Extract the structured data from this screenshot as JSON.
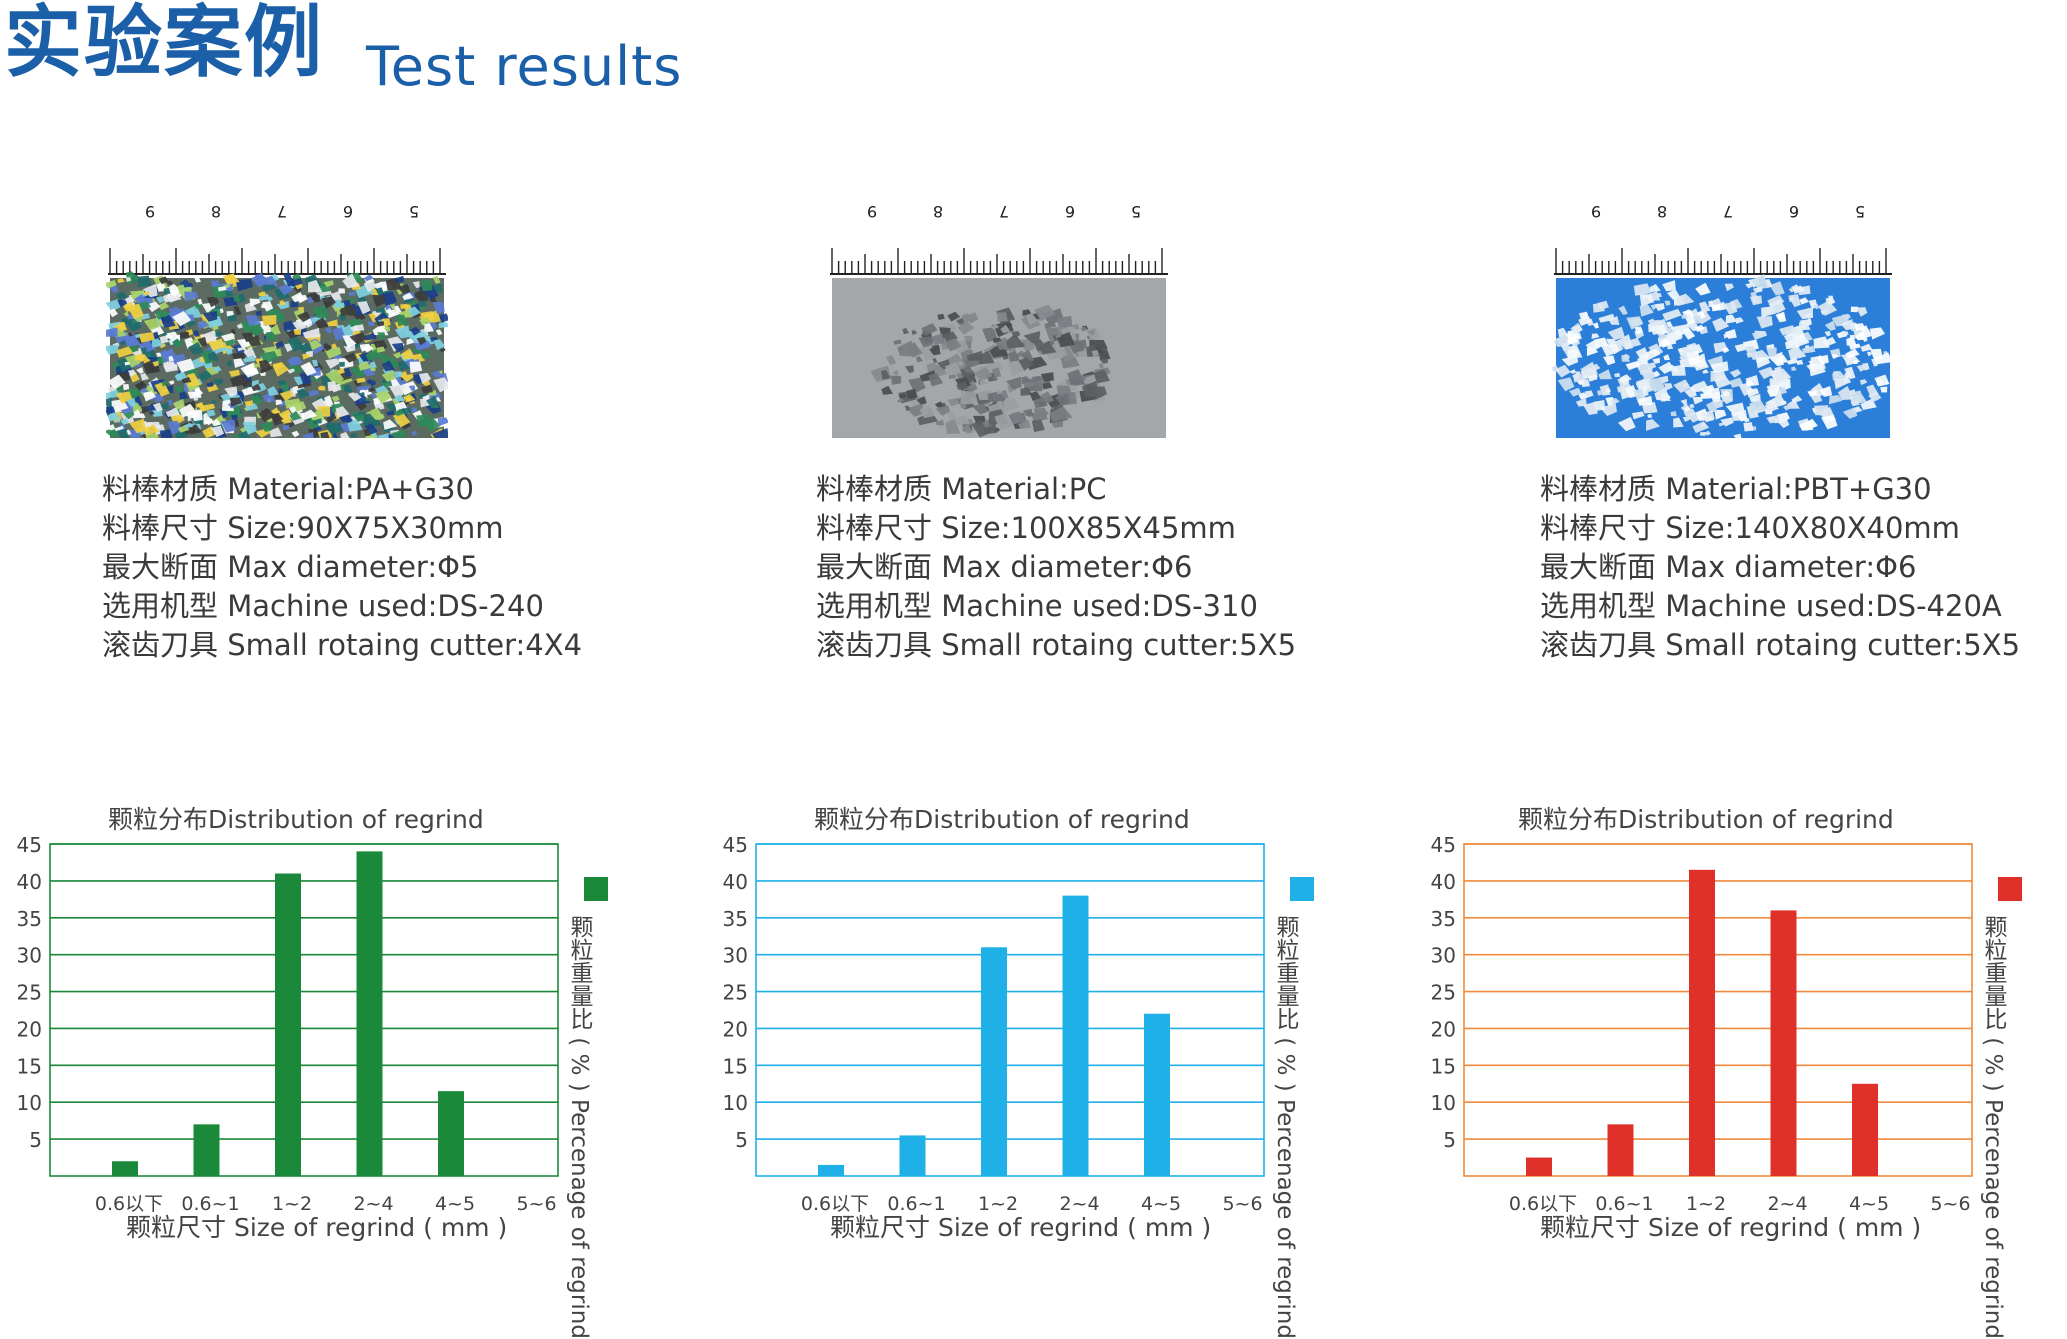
{
  "header": {
    "title_cn": "实验案例",
    "title_en": "Test results"
  },
  "ruler_labels": [
    "9",
    "8",
    "7",
    "6",
    "5"
  ],
  "panels": [
    {
      "id": "pa",
      "photo_icon": "regrind-photo-multicolor",
      "info": [
        "料棒材质 Material:PA+G30",
        "料棒尺寸 Size:90X75X30mm",
        "最大断面 Max diameter:Φ5",
        "选用机型 Machine used:DS-240",
        "滚齿刀具 Small rotaing cutter:4X4"
      ]
    },
    {
      "id": "pc",
      "photo_icon": "regrind-photo-gray",
      "info": [
        "料棒材质 Material:PC",
        "料棒尺寸 Size:100X85X45mm",
        "最大断面 Max diameter:Φ6",
        "选用机型 Machine used:DS-310",
        "滚齿刀具 Small rotaing cutter:5X5"
      ]
    },
    {
      "id": "pbt",
      "photo_icon": "regrind-photo-white",
      "info": [
        "料棒材质 Material:PBT+G30",
        "料棒尺寸 Size:140X80X40mm",
        "最大断面 Max diameter:Φ6",
        "选用机型 Machine used:DS-420A",
        "滚齿刀具 Small rotaing cutter:5X5"
      ]
    }
  ],
  "chart_data": [
    {
      "type": "bar",
      "title": "颗粒分布Distribution of regrind",
      "xlabel": "颗粒尺寸 Size of regrind ( mm )",
      "ylabel": "颗粒重量比 ( % ) Percenage of regrind",
      "categories": [
        "0.6以下",
        "0.6~1",
        "1~2",
        "2~4",
        "4~5",
        "5~6"
      ],
      "values": [
        2,
        7,
        41,
        44,
        11.5,
        0
      ],
      "ylim": [
        0,
        45
      ],
      "yticks": [
        5,
        10,
        15,
        20,
        25,
        30,
        35,
        40,
        45
      ],
      "color": "#1a8a3a",
      "grid": true,
      "legend": "right"
    },
    {
      "type": "bar",
      "title": "颗粒分布Distribution of regrind",
      "xlabel": "颗粒尺寸 Size of regrind ( mm )",
      "ylabel": "颗粒重量比 ( % ) Percenage of regrind",
      "categories": [
        "0.6以下",
        "0.6~1",
        "1~2",
        "2~4",
        "4~5",
        "5~6"
      ],
      "values": [
        1.5,
        5.5,
        31,
        38,
        22,
        0
      ],
      "ylim": [
        0,
        45
      ],
      "yticks": [
        5,
        10,
        15,
        20,
        25,
        30,
        35,
        40,
        45
      ],
      "color": "#1fb0e8",
      "grid": true,
      "legend": "right"
    },
    {
      "type": "bar",
      "title": "颗粒分布Distribution of regrind",
      "xlabel": "颗粒尺寸 Size of regrind ( mm )",
      "ylabel": "颗粒重量比 ( % ) Percenage of regrind",
      "categories": [
        "0.6以下",
        "0.6~1",
        "1~2",
        "2~4",
        "4~5",
        "5~6"
      ],
      "values": [
        2.5,
        7,
        41.5,
        36,
        12.5,
        0
      ],
      "ylim": [
        0,
        45
      ],
      "yticks": [
        5,
        10,
        15,
        20,
        25,
        30,
        35,
        40,
        45
      ],
      "color": "#e0302a",
      "gridColor": "#f08a3c",
      "grid": true,
      "legend": "right"
    }
  ]
}
